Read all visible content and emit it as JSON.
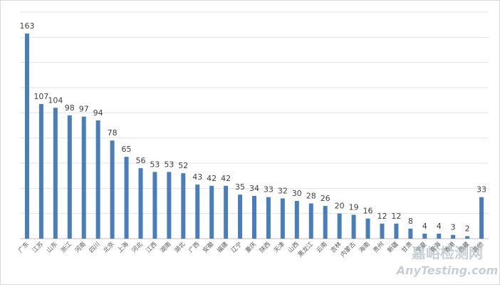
{
  "chart_data": {
    "type": "bar",
    "categories": [
      "广东",
      "江苏",
      "山东",
      "浙江",
      "河南",
      "四川",
      "北京",
      "上海",
      "河北",
      "江西",
      "湖南",
      "湖北",
      "广西",
      "安徽",
      "福建",
      "辽宁",
      "重庆",
      "陕西",
      "天津",
      "山西",
      "黑龙江",
      "云南",
      "吉林",
      "内蒙古",
      "海南",
      "贵州",
      "新疆",
      "甘肃",
      "宁夏",
      "青海",
      "香港",
      "西藏",
      "其他"
    ],
    "values": [
      163,
      107,
      104,
      98,
      97,
      94,
      78,
      65,
      56,
      53,
      53,
      52,
      43,
      42,
      42,
      35,
      34,
      33,
      32,
      30,
      28,
      26,
      20,
      19,
      16,
      12,
      12,
      8,
      4,
      4,
      3,
      2,
      33
    ],
    "color": "#4a7ebb",
    "ylim": [
      0,
      180
    ],
    "yticks": [
      0,
      20,
      40,
      60,
      80,
      100,
      120,
      140,
      160,
      180
    ],
    "grid": true
  },
  "watermark": {
    "title": "嘉峪检测网",
    "url": "AnyTesting.com"
  }
}
